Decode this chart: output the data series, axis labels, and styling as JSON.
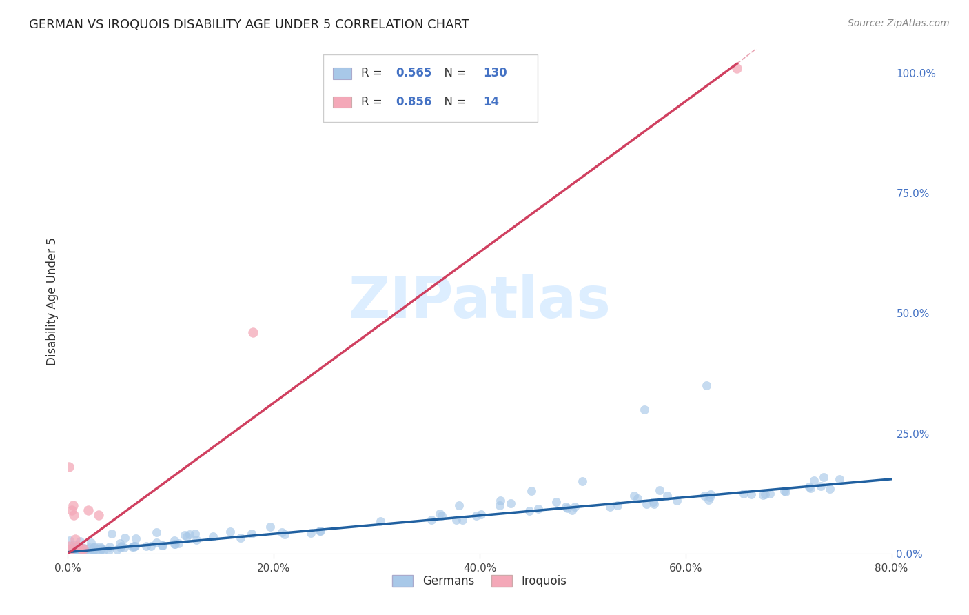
{
  "title": "GERMAN VS IROQUOIS DISABILITY AGE UNDER 5 CORRELATION CHART",
  "source": "Source: ZipAtlas.com",
  "ylabel": "Disability Age Under 5",
  "xlim": [
    0.0,
    0.8
  ],
  "ylim": [
    0.0,
    1.05
  ],
  "german_R": 0.565,
  "german_N": 130,
  "iroquois_R": 0.856,
  "iroquois_N": 14,
  "german_color": "#a8c8e8",
  "iroquois_color": "#f4a8b8",
  "german_line_color": "#2060a0",
  "iroquois_line_color": "#d04060",
  "legend_color": "#4472c4",
  "background_color": "#ffffff",
  "grid_color": "#cccccc",
  "watermark_color": "#ddeeff",
  "title_color": "#222222",
  "tick_color_x": "#444444",
  "tick_color_y": "#4472c4",
  "german_trend_x0": 0.0,
  "german_trend_y0": 0.003,
  "german_trend_x1": 0.8,
  "german_trend_y1": 0.155,
  "iroquois_trend_x0": 0.0,
  "iroquois_trend_y0": 0.0,
  "iroquois_trend_x1": 0.65,
  "iroquois_trend_y1": 1.02,
  "iroquois_x": [
    0.001,
    0.002,
    0.003,
    0.004,
    0.005,
    0.006,
    0.007,
    0.01,
    0.013,
    0.015,
    0.02,
    0.03,
    0.18,
    0.65
  ],
  "iroquois_y": [
    0.18,
    0.015,
    0.01,
    0.09,
    0.1,
    0.08,
    0.03,
    0.015,
    0.01,
    0.01,
    0.09,
    0.08,
    0.46,
    1.01
  ]
}
